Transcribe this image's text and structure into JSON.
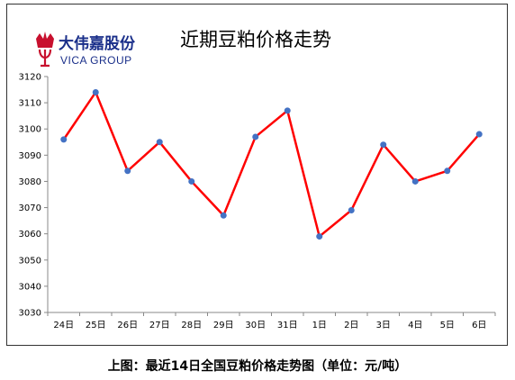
{
  "logo": {
    "name_cn": "大伟嘉股份",
    "name_en": "VICA GROUP",
    "colors": {
      "crown": "#c8102e",
      "text": "#1a2f8a"
    }
  },
  "caption": "上图：最近14日全国豆粕价格走势图（单位：元/吨）",
  "chart_data": {
    "type": "line",
    "title": "近期豆粕价格走势",
    "xlabel": "",
    "ylabel": "",
    "categories": [
      "24日",
      "25日",
      "26日",
      "27日",
      "28日",
      "29日",
      "30日",
      "31日",
      "1日",
      "2日",
      "3日",
      "4日",
      "5日",
      "6日"
    ],
    "values": [
      3096,
      3114,
      3084,
      3095,
      3080,
      3067,
      3097,
      3107,
      3059,
      3069,
      3094,
      3080,
      3084,
      3098
    ],
    "ylim": [
      3030,
      3120
    ],
    "yticks": [
      3030,
      3040,
      3050,
      3060,
      3070,
      3080,
      3090,
      3100,
      3110,
      3120
    ],
    "grid": false,
    "legend": "none",
    "colors": {
      "line": "#ff0000",
      "marker": "#4472c4",
      "axis": "#888888"
    }
  }
}
